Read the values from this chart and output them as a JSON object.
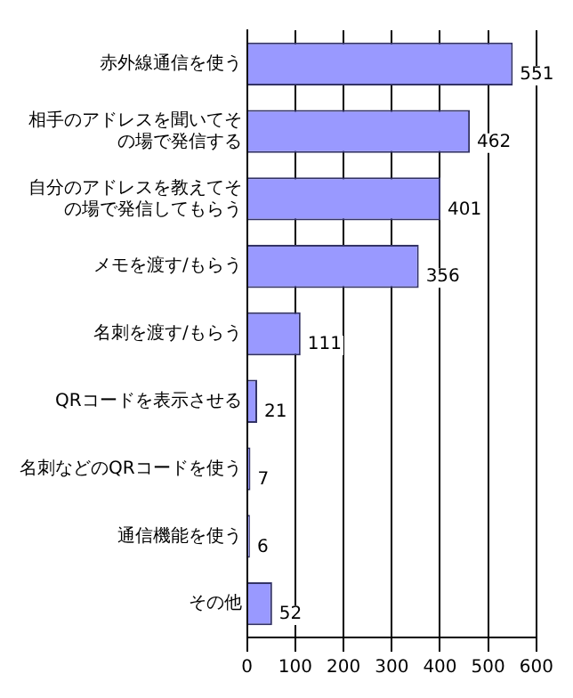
{
  "chart_data": {
    "type": "bar",
    "orientation": "horizontal",
    "categories": [
      "赤外線通信を使う",
      "相手のアドレスを聞いてその場で発信する",
      "自分のアドレスを教えてその場で発信してもらう",
      "メモを渡す/もらう",
      "名刺を渡す/もらう",
      "QRコードを表示させる",
      "名刺などのQRコードを使う",
      "通信機能を使う",
      "その他"
    ],
    "values": [
      551,
      462,
      401,
      356,
      111,
      21,
      7,
      6,
      52
    ],
    "color": "#9999ff",
    "xlim": [
      0,
      600
    ],
    "xticks": [
      0,
      100,
      200,
      300,
      400,
      500,
      600
    ],
    "grid": "x",
    "data_labels": true
  }
}
